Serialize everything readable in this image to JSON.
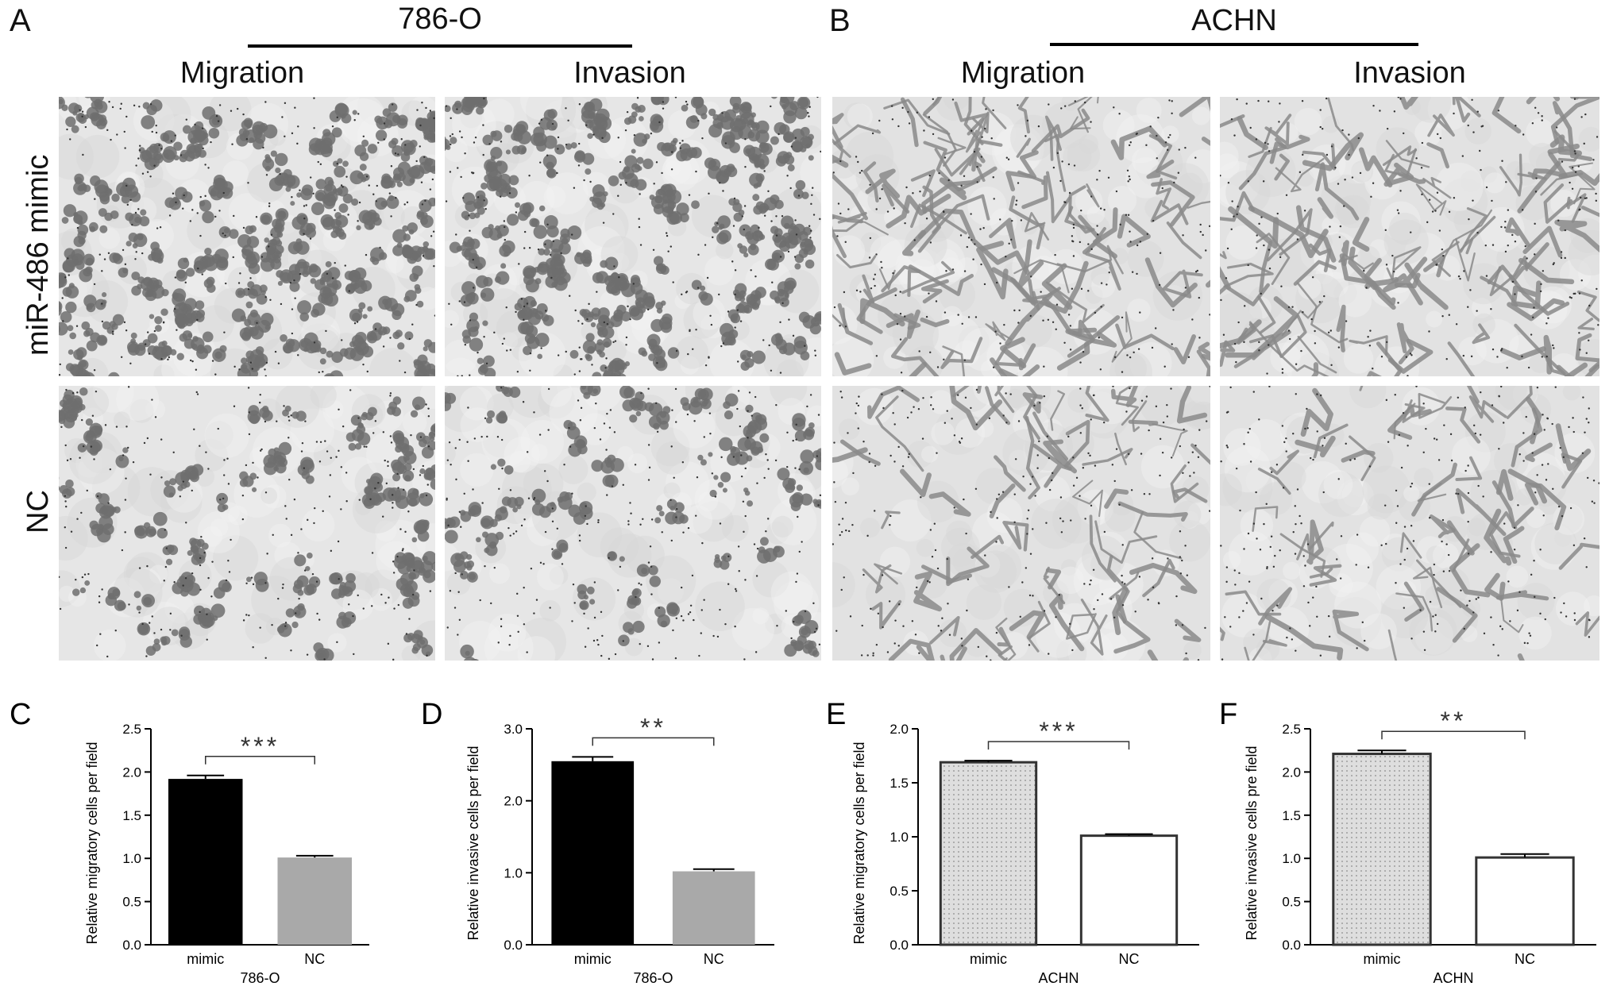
{
  "figure": {
    "panel_A": {
      "letter": "A",
      "cell_line": "786-O",
      "columns": [
        "Migration",
        "Invasion"
      ]
    },
    "panel_B": {
      "letter": "B",
      "cell_line": "ACHN",
      "columns": [
        "Migration",
        "Invasion"
      ]
    },
    "row_labels": [
      "miR-486  mimic",
      "NC"
    ]
  },
  "colors": {
    "black_bar": "#000000",
    "gray_bar": "#a9a9a9",
    "dotted_bar_fill": "#dedede",
    "white_bar": "#ffffff",
    "stain_786O": "#6e6e6e",
    "stain_ACHN": "#8a8a8a"
  },
  "chart_data": [
    {
      "panel": "C",
      "type": "bar",
      "categories": [
        "mimic",
        "NC"
      ],
      "values": [
        1.92,
        1.01
      ],
      "errors": [
        0.04,
        0.02
      ],
      "xlabel": "786-O",
      "ylabel": "Relative migratory cells per field",
      "ylim": [
        0,
        2.5
      ],
      "yticks": [
        "0.0",
        "0.5",
        "1.0",
        "1.5",
        "2.0",
        "2.5"
      ],
      "significance": "***",
      "bar_styles": [
        "solid-black",
        "solid-gray"
      ]
    },
    {
      "panel": "D",
      "type": "bar",
      "categories": [
        "mimic",
        "NC"
      ],
      "values": [
        2.55,
        1.02
      ],
      "errors": [
        0.06,
        0.03
      ],
      "xlabel": "786-O",
      "ylabel": "Relative invasive cells per field",
      "ylim": [
        0,
        3.0
      ],
      "yticks": [
        "0.0",
        "1.0",
        "2.0",
        "3.0"
      ],
      "significance": "**",
      "bar_styles": [
        "solid-black",
        "solid-gray"
      ]
    },
    {
      "panel": "E",
      "type": "bar",
      "categories": [
        "mimic",
        "NC"
      ],
      "values": [
        1.69,
        1.01
      ],
      "errors": [
        0.015,
        0.015
      ],
      "xlabel": "ACHN",
      "ylabel": "Relative migratory cells per field",
      "ylim": [
        0,
        2.0
      ],
      "yticks": [
        "0.0",
        "0.5",
        "1.0",
        "1.5",
        "2.0"
      ],
      "significance": "***",
      "bar_styles": [
        "dotted",
        "white"
      ]
    },
    {
      "panel": "F",
      "type": "bar",
      "categories": [
        "mimic",
        "NC"
      ],
      "values": [
        2.21,
        1.01
      ],
      "errors": [
        0.04,
        0.04
      ],
      "xlabel": "ACHN",
      "ylabel": "Relative invasive cells pre field",
      "ylim": [
        0,
        2.5
      ],
      "yticks": [
        "0.0",
        "0.5",
        "1.0",
        "1.5",
        "2.0",
        "2.5"
      ],
      "significance": "**",
      "bar_styles": [
        "dotted",
        "white"
      ]
    }
  ]
}
